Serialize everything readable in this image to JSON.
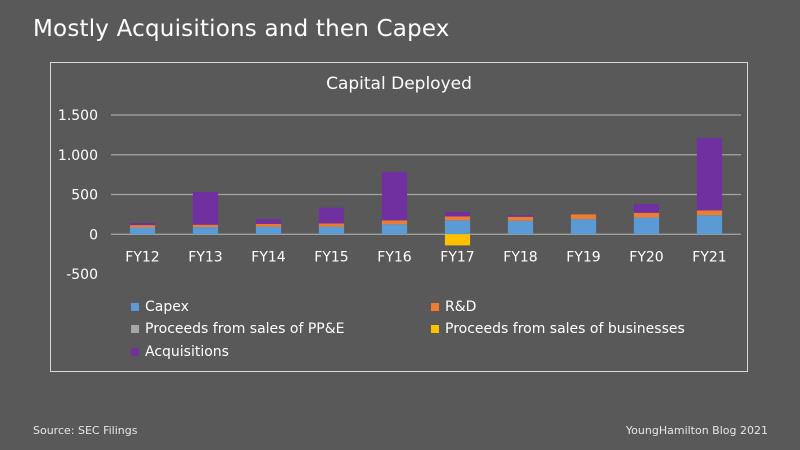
{
  "slide_title": "Mostly Acquisitions and then Capex",
  "footer": {
    "source": "Source: SEC Filings",
    "credit": "YoungHamilton Blog 2021"
  },
  "colors": {
    "background": "#595959",
    "frame": "#d9d9d9",
    "gridline": "#a6a6a6",
    "text": "#ffffff"
  },
  "chart_data": {
    "type": "bar",
    "stacked": true,
    "title": "Capital Deployed",
    "xlabel": "",
    "ylabel": "",
    "categories": [
      "FY12",
      "FY13",
      "FY14",
      "FY15",
      "FY16",
      "FY17",
      "FY18",
      "FY19",
      "FY20",
      "FY21"
    ],
    "ylim": [
      -500,
      1500
    ],
    "yticks": [
      -500,
      0,
      500,
      1000,
      1500
    ],
    "ytick_labels": [
      "-500",
      "0",
      "500",
      "1.000",
      "1.500"
    ],
    "grid": true,
    "legend_position": "bottom",
    "series": [
      {
        "name": "Capex",
        "color": "#5b9bd5",
        "values": [
          85,
          90,
          95,
          95,
          125,
          175,
          170,
          190,
          210,
          240
        ]
      },
      {
        "name": "R&D",
        "color": "#ed7d31",
        "values": [
          30,
          30,
          35,
          40,
          50,
          50,
          50,
          60,
          60,
          60
        ]
      },
      {
        "name": "Proceeds from sales of PP&E",
        "color": "#a5a5a5",
        "values": [
          0,
          0,
          0,
          0,
          0,
          0,
          0,
          0,
          0,
          0
        ]
      },
      {
        "name": "Proceeds from sales of businesses",
        "color": "#ffc000",
        "values": [
          0,
          0,
          0,
          0,
          0,
          -140,
          0,
          0,
          0,
          0
        ]
      },
      {
        "name": "Acquisitions",
        "color": "#7030a0",
        "values": [
          25,
          410,
          60,
          200,
          610,
          55,
          20,
          0,
          110,
          910
        ]
      }
    ]
  }
}
